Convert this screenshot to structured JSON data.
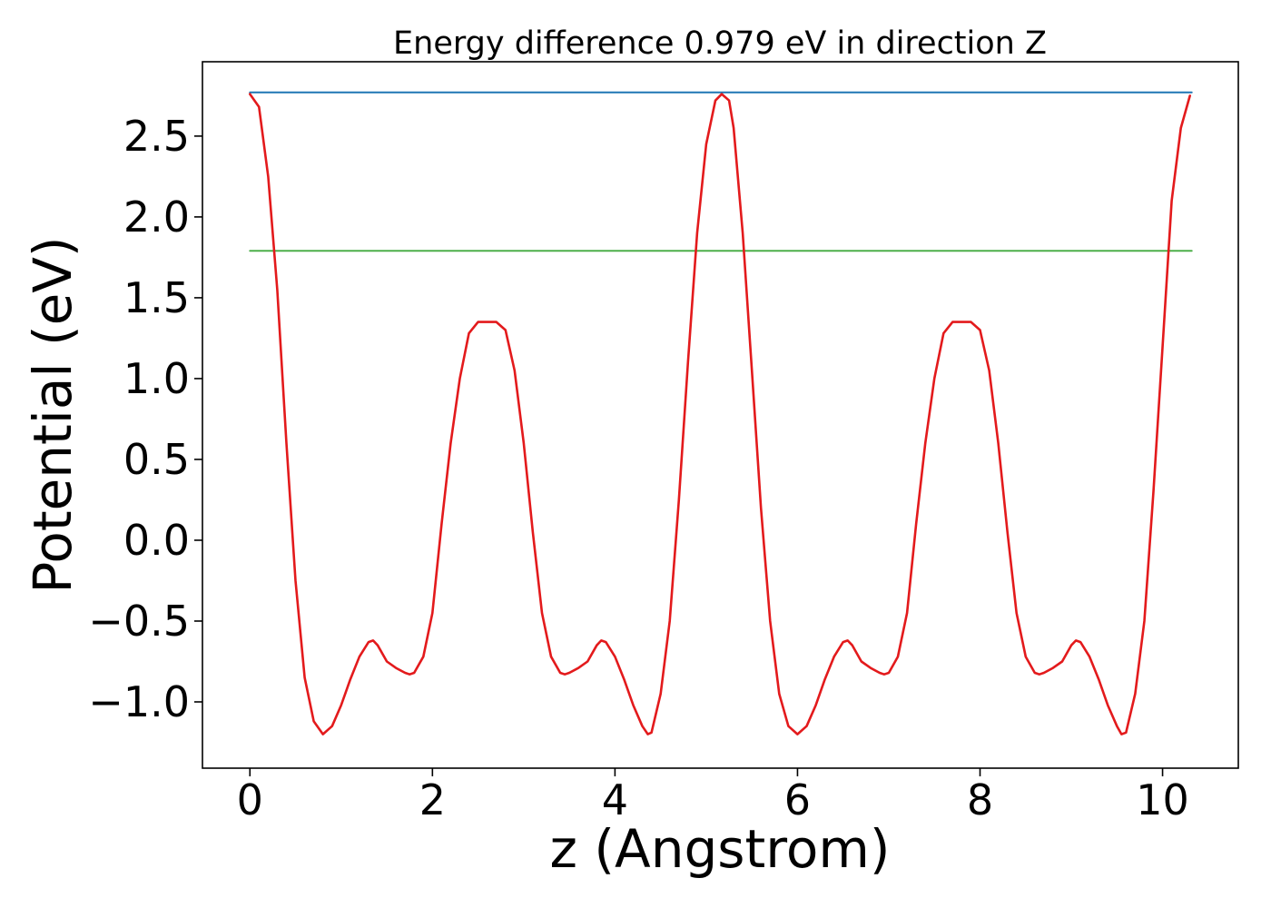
{
  "chart_data": {
    "type": "line",
    "title": "Energy difference 0.979 eV in direction Z",
    "xlabel": "z (Angstrom)",
    "ylabel": "Potential (eV)",
    "xlim": [
      -0.52,
      10.83
    ],
    "ylim": [
      -1.41,
      2.96
    ],
    "xticks": [
      0,
      2,
      4,
      6,
      8,
      10
    ],
    "yticks": [
      -1.0,
      -0.5,
      0.0,
      0.5,
      1.0,
      1.5,
      2.0,
      2.5
    ],
    "xtick_labels": [
      "0",
      "2",
      "4",
      "6",
      "8",
      "10"
    ],
    "ytick_labels": [
      "−1.0",
      "−0.5",
      "0.0",
      "0.5",
      "1.0",
      "1.5",
      "2.0",
      "2.5"
    ],
    "grid": false,
    "legend": "none",
    "series": [
      {
        "role": "potential",
        "color": "#e31a1c",
        "x": [
          0.0,
          0.1,
          0.2,
          0.3,
          0.4,
          0.5,
          0.6,
          0.7,
          0.8,
          0.9,
          1.0,
          1.1,
          1.2,
          1.3,
          1.35,
          1.4,
          1.5,
          1.6,
          1.7,
          1.75,
          1.8,
          1.9,
          2.0,
          2.1,
          2.2,
          2.3,
          2.4,
          2.5,
          2.6,
          2.7,
          2.8,
          2.9,
          3.0,
          3.1,
          3.2,
          3.3,
          3.4,
          3.45,
          3.5,
          3.6,
          3.7,
          3.8,
          3.85,
          3.9,
          4.0,
          4.1,
          4.2,
          4.3,
          4.36,
          4.4,
          4.5,
          4.6,
          4.7,
          4.8,
          4.9,
          5.0,
          5.1,
          5.17,
          5.25,
          5.3,
          5.4,
          5.5,
          5.6,
          5.7,
          5.8,
          5.9,
          6.0,
          6.1,
          6.2,
          6.3,
          6.4,
          6.5,
          6.55,
          6.6,
          6.7,
          6.8,
          6.9,
          6.95,
          7.0,
          7.1,
          7.2,
          7.3,
          7.4,
          7.5,
          7.6,
          7.7,
          7.8,
          7.9,
          8.0,
          8.1,
          8.2,
          8.3,
          8.4,
          8.5,
          8.6,
          8.65,
          8.7,
          8.8,
          8.9,
          9.0,
          9.05,
          9.1,
          9.2,
          9.3,
          9.4,
          9.5,
          9.55,
          9.6,
          9.7,
          9.8,
          9.9,
          10.0,
          10.1,
          10.2,
          10.3
        ],
        "y": [
          2.76,
          2.68,
          2.25,
          1.55,
          0.6,
          -0.25,
          -0.85,
          -1.12,
          -1.2,
          -1.15,
          -1.02,
          -0.86,
          -0.72,
          -0.63,
          -0.62,
          -0.65,
          -0.75,
          -0.79,
          -0.82,
          -0.83,
          -0.82,
          -0.72,
          -0.45,
          0.1,
          0.6,
          1.0,
          1.28,
          1.35,
          1.35,
          1.35,
          1.3,
          1.05,
          0.6,
          0.05,
          -0.45,
          -0.72,
          -0.82,
          -0.83,
          -0.82,
          -0.79,
          -0.75,
          -0.65,
          -0.62,
          -0.63,
          -0.72,
          -0.86,
          -1.02,
          -1.15,
          -1.2,
          -1.19,
          -0.95,
          -0.5,
          0.25,
          1.1,
          1.9,
          2.45,
          2.72,
          2.76,
          2.72,
          2.55,
          1.9,
          1.05,
          0.2,
          -0.5,
          -0.95,
          -1.15,
          -1.2,
          -1.15,
          -1.02,
          -0.86,
          -0.72,
          -0.63,
          -0.62,
          -0.65,
          -0.75,
          -0.79,
          -0.82,
          -0.83,
          -0.82,
          -0.72,
          -0.45,
          0.1,
          0.6,
          1.0,
          1.28,
          1.35,
          1.35,
          1.35,
          1.3,
          1.05,
          0.6,
          0.05,
          -0.45,
          -0.72,
          -0.82,
          -0.83,
          -0.82,
          -0.79,
          -0.75,
          -0.65,
          -0.62,
          -0.63,
          -0.72,
          -0.86,
          -1.02,
          -1.15,
          -1.2,
          -1.19,
          -0.95,
          -0.5,
          0.3,
          1.2,
          2.1,
          2.55,
          2.75
        ]
      },
      {
        "role": "maximum-level",
        "color": "#1f77b4",
        "x": [
          0.0,
          10.32
        ],
        "y": [
          2.77,
          2.77
        ]
      },
      {
        "role": "mean-level",
        "color": "#4daf4a",
        "x": [
          0.0,
          10.32
        ],
        "y": [
          1.79,
          1.79
        ]
      }
    ]
  }
}
